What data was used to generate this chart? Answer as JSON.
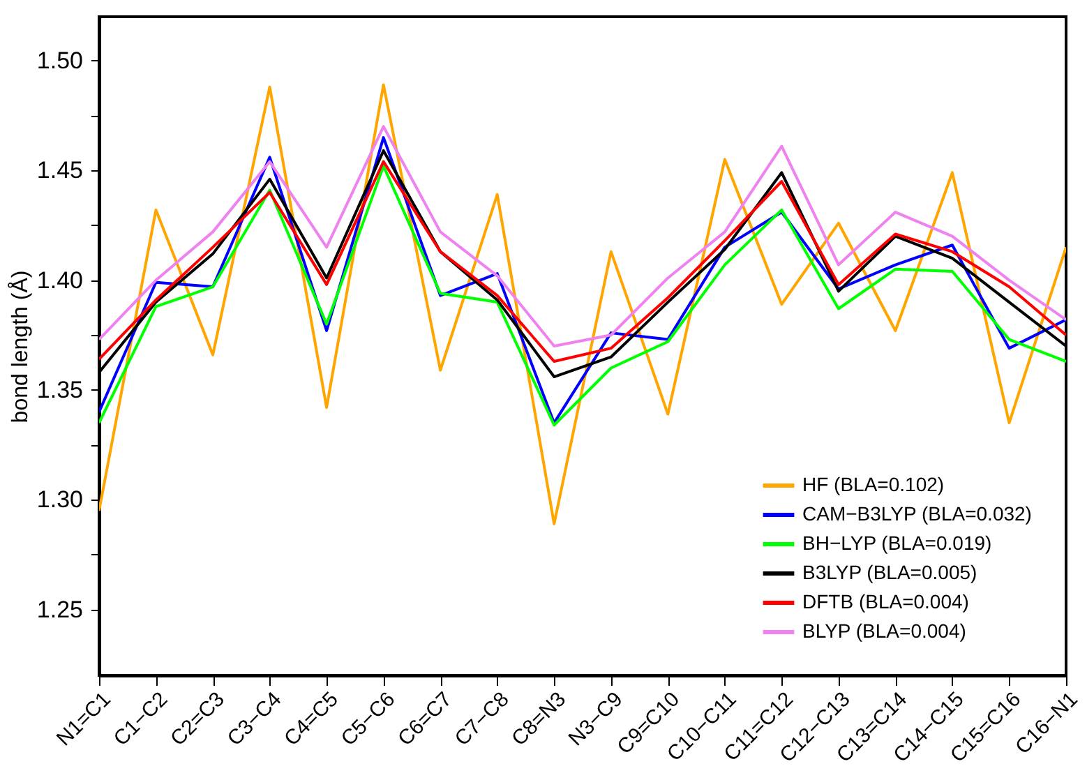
{
  "chart_data": {
    "type": "line",
    "ylabel": "bond length (Å)",
    "categories": [
      "N1=C1",
      "C1−C2",
      "C2=C3",
      "C3−C4",
      "C4=C5",
      "C5−C6",
      "C6=C7",
      "C7−C8",
      "C8=N3",
      "N3−C9",
      "C9=C10",
      "C10−C11",
      "C11=C12",
      "C12−C13",
      "C13=C14",
      "C14−C15",
      "C15=C16",
      "C16−N1"
    ],
    "series": [
      {
        "name": "HF (BLA=0.102)",
        "color": "#ffa500",
        "values": [
          1.295,
          1.432,
          1.366,
          1.488,
          1.342,
          1.489,
          1.359,
          1.439,
          1.289,
          1.413,
          1.339,
          1.455,
          1.389,
          1.426,
          1.377,
          1.449,
          1.335,
          1.415
        ]
      },
      {
        "name": "CAM−B3LYP (BLA=0.032)",
        "color": "#0000ff",
        "values": [
          1.34,
          1.399,
          1.397,
          1.456,
          1.377,
          1.465,
          1.393,
          1.403,
          1.335,
          1.376,
          1.373,
          1.415,
          1.431,
          1.396,
          1.407,
          1.416,
          1.369,
          1.382
        ]
      },
      {
        "name": "BH−LYP (BLA=0.019)",
        "color": "#00ff00",
        "values": [
          1.335,
          1.388,
          1.397,
          1.441,
          1.38,
          1.452,
          1.394,
          1.39,
          1.334,
          1.36,
          1.372,
          1.407,
          1.432,
          1.387,
          1.405,
          1.404,
          1.373,
          1.363
        ]
      },
      {
        "name": "B3LYP (BLA=0.005)",
        "color": "#000000",
        "values": [
          1.358,
          1.39,
          1.412,
          1.446,
          1.401,
          1.459,
          1.413,
          1.391,
          1.356,
          1.365,
          1.39,
          1.414,
          1.449,
          1.395,
          1.42,
          1.41,
          1.39,
          1.37
        ]
      },
      {
        "name": "DFTB (BLA=0.004)",
        "color": "#ff0000",
        "values": [
          1.364,
          1.391,
          1.415,
          1.44,
          1.398,
          1.454,
          1.413,
          1.393,
          1.363,
          1.369,
          1.392,
          1.418,
          1.445,
          1.398,
          1.421,
          1.413,
          1.397,
          1.375
        ]
      },
      {
        "name": "BLYP (BLA=0.004)",
        "color": "#ee82ee",
        "values": [
          1.373,
          1.4,
          1.422,
          1.454,
          1.415,
          1.47,
          1.422,
          1.402,
          1.37,
          1.375,
          1.401,
          1.422,
          1.461,
          1.407,
          1.431,
          1.42,
          1.4,
          1.382
        ]
      }
    ],
    "ylim": [
      1.22,
      1.52
    ],
    "yticks": [
      1.25,
      {
        "value": 1.275,
        "label": null
      },
      {
        "value": 1.3,
        "label": "1.30"
      },
      {
        "value": 1.325,
        "label": null
      },
      1.35,
      {
        "value": 1.375,
        "label": null
      },
      {
        "value": 1.4,
        "label": "1.40"
      },
      {
        "value": 1.425,
        "label": null
      },
      1.45,
      {
        "value": 1.475,
        "label": null
      },
      {
        "value": 1.5,
        "label": "1.50"
      }
    ],
    "grid": false,
    "legend": "bottom right",
    "marker": "none",
    "line_style": "solid"
  }
}
